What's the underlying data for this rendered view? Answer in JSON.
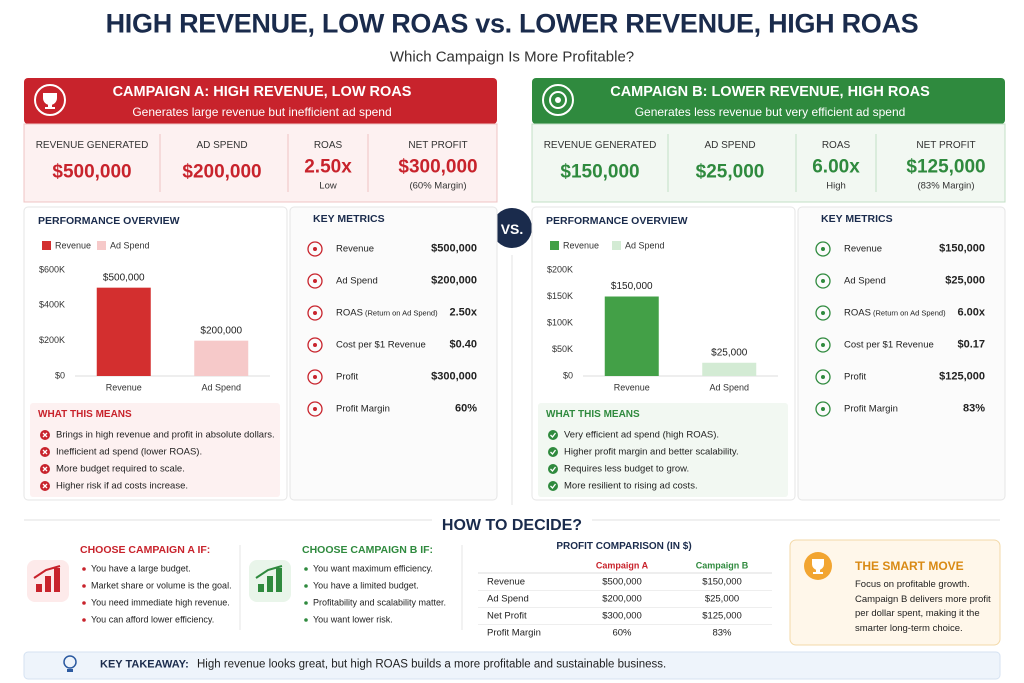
{
  "header": {
    "title": "HIGH REVENUE, LOW ROAS vs. LOWER REVENUE, HIGH ROAS",
    "subtitle": "Which Campaign Is More Profitable?"
  },
  "vs": "VS.",
  "campaign_a": {
    "title": "CAMPAIGN A: HIGH REVENUE, LOW ROAS",
    "subtitle": "Generates large revenue but inefficient ad spend",
    "stats": [
      {
        "label": "REVENUE GENERATED",
        "value": "$500,000"
      },
      {
        "label": "AD SPEND",
        "value": "$200,000"
      },
      {
        "label": "ROAS",
        "value": "2.50x",
        "note": "Low"
      },
      {
        "label": "NET PROFIT",
        "value": "$300,000",
        "note": "(60% Margin)"
      }
    ],
    "performance_title": "PERFORMANCE OVERVIEW",
    "key_metrics": {
      "title": "KEY METRICS",
      "rows": [
        {
          "label": "Revenue",
          "value": "$500,000"
        },
        {
          "label": "Ad Spend",
          "value": "$200,000"
        },
        {
          "label": "ROAS",
          "note": "(Return on Ad Spend)",
          "value": "2.50x"
        },
        {
          "label": "Cost per $1 Revenue",
          "value": "$0.40"
        },
        {
          "label": "Profit",
          "value": "$300,000"
        },
        {
          "label": "Profit Margin",
          "value": "60%"
        }
      ]
    },
    "means": {
      "title": "WHAT THIS MEANS",
      "items": [
        "Brings in high revenue and profit in absolute dollars.",
        "Inefficient ad spend (lower ROAS).",
        "More budget required to scale.",
        "Higher risk if ad costs increase."
      ]
    }
  },
  "campaign_b": {
    "title": "CAMPAIGN B: LOWER REVENUE, HIGH ROAS",
    "subtitle": "Generates less revenue but very efficient ad spend",
    "stats": [
      {
        "label": "REVENUE GENERATED",
        "value": "$150,000"
      },
      {
        "label": "AD SPEND",
        "value": "$25,000"
      },
      {
        "label": "ROAS",
        "value": "6.00x",
        "note": "High"
      },
      {
        "label": "NET PROFIT",
        "value": "$125,000",
        "note": "(83% Margin)"
      }
    ],
    "performance_title": "PERFORMANCE OVERVIEW",
    "key_metrics": {
      "title": "KEY METRICS",
      "rows": [
        {
          "label": "Revenue",
          "value": "$150,000"
        },
        {
          "label": "Ad Spend",
          "value": "$25,000"
        },
        {
          "label": "ROAS",
          "note": "(Return on Ad Spend)",
          "value": "6.00x"
        },
        {
          "label": "Cost per $1 Revenue",
          "value": "$0.17"
        },
        {
          "label": "Profit",
          "value": "$125,000"
        },
        {
          "label": "Profit Margin",
          "value": "83%"
        }
      ]
    },
    "means": {
      "title": "WHAT THIS MEANS",
      "items": [
        "Very efficient ad spend (high ROAS).",
        "Higher profit margin and better scalability.",
        "Requires less budget to grow.",
        "More resilient to rising ad costs."
      ]
    }
  },
  "chart_data": [
    {
      "type": "bar",
      "categories": [
        "Revenue",
        "Ad Spend"
      ],
      "values": [
        500000,
        200000
      ],
      "value_labels": [
        "$500,000",
        "$200,000"
      ],
      "colors": [
        "#d32f2f",
        "#f6c9c9"
      ],
      "legend": true,
      "ylim": [
        0,
        600000
      ],
      "yticks": [
        {
          "value": 0,
          "label": "$0"
        },
        {
          "value": 200000,
          "label": "$200K"
        },
        {
          "value": 400000,
          "label": "$400K"
        },
        {
          "value": 600000,
          "label": "$600K"
        }
      ]
    },
    {
      "type": "bar",
      "categories": [
        "Revenue",
        "Ad Spend"
      ],
      "values": [
        150000,
        25000
      ],
      "value_labels": [
        "$150,000",
        "$25,000"
      ],
      "colors": [
        "#43a047",
        "#d3ebd4"
      ],
      "legend": true,
      "ylim": [
        0,
        200000
      ],
      "yticks": [
        {
          "value": 0,
          "label": "$0"
        },
        {
          "value": 50000,
          "label": "$50K"
        },
        {
          "value": 100000,
          "label": "$100K"
        },
        {
          "value": 150000,
          "label": "$150K"
        },
        {
          "value": 200000,
          "label": "$200K"
        }
      ]
    }
  ],
  "decide": {
    "title": "HOW TO DECIDE?",
    "choose_a": {
      "title": "CHOOSE CAMPAIGN A IF:",
      "items": [
        "You have a large budget.",
        "Market share or volume is the goal.",
        "You need immediate high revenue.",
        "You can afford lower efficiency."
      ]
    },
    "choose_b": {
      "title": "CHOOSE CAMPAIGN B IF:",
      "items": [
        "You want maximum efficiency.",
        "You have a limited budget.",
        "Profitability and scalability matter.",
        "You want lower risk."
      ]
    },
    "profit_comparison": {
      "title": "PROFIT COMPARISON (IN $)",
      "columns": [
        "Campaign A",
        "Campaign B"
      ],
      "rows": [
        [
          "Revenue",
          "$500,000",
          "$150,000"
        ],
        [
          "Ad Spend",
          "$200,000",
          "$25,000"
        ],
        [
          "Net Profit",
          "$300,000",
          "$125,000"
        ],
        [
          "Profit Margin",
          "60%",
          "83%"
        ]
      ]
    },
    "smart_move": {
      "title": "THE SMART MOVE",
      "text": "Focus on profitable growth. Campaign B delivers more profit per dollar spent, making it the smarter long-term choice."
    }
  },
  "takeaway": {
    "label": "KEY TAKEAWAY:",
    "text": "High revenue looks great, but high ROAS builds a more profitable and sustainable business."
  }
}
